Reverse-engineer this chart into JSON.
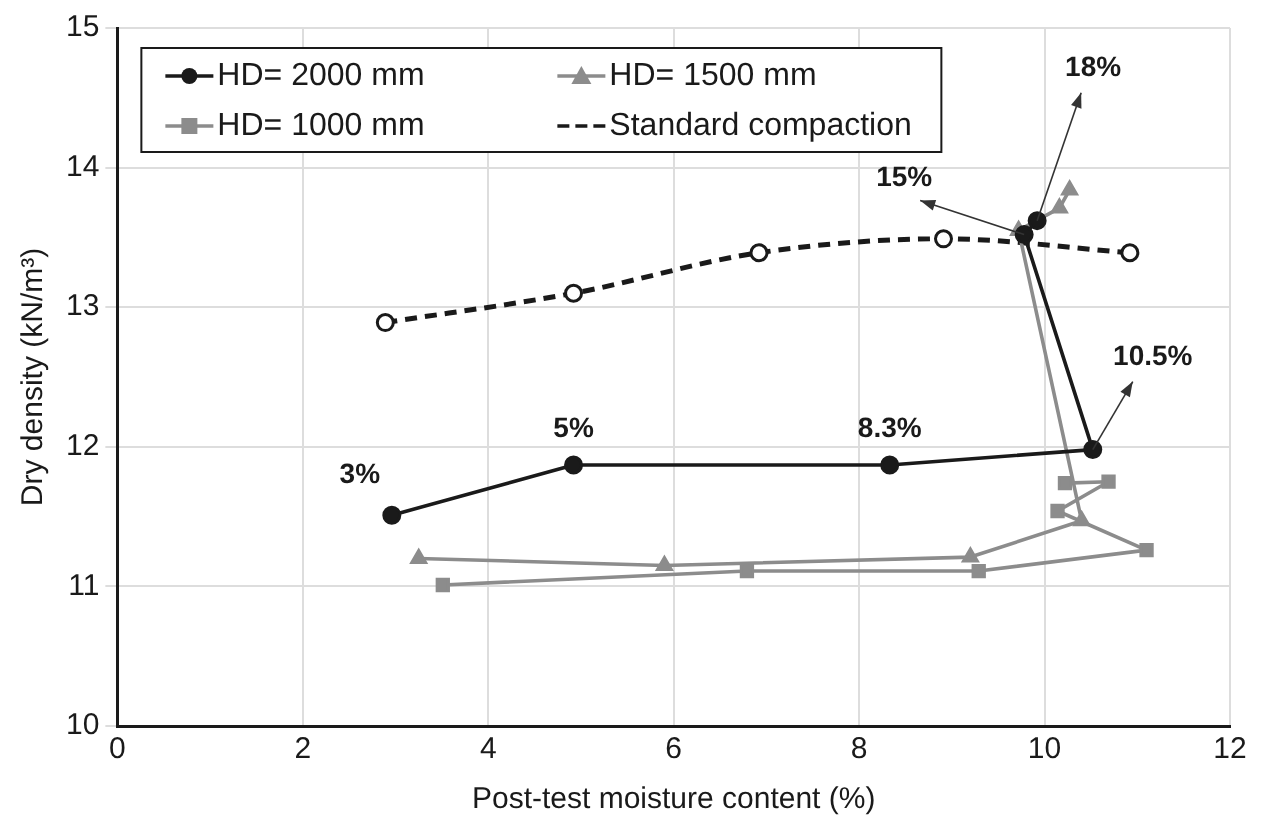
{
  "chart_data": {
    "type": "line",
    "xlabel": "Post-test moisture content (%)",
    "ylabel": "Dry density (kN/m³)",
    "xlim": [
      0,
      12
    ],
    "xticks": [
      0,
      2,
      4,
      6,
      8,
      10,
      12
    ],
    "ylim": [
      10,
      15
    ],
    "yticks": [
      10,
      11,
      12,
      13,
      14,
      15
    ],
    "grid": true,
    "legend": "top left",
    "series": [
      {
        "name": "HD= 2000 mm",
        "color": "#1a1a1a",
        "marker": "circle",
        "line_style": "solid",
        "x": [
          2.96,
          4.92,
          8.33,
          10.52,
          9.78,
          9.92
        ],
        "values": [
          11.51,
          11.87,
          11.87,
          11.98,
          13.52,
          13.62
        ]
      },
      {
        "name": "HD= 1500 mm",
        "color": "#8c8c8c",
        "marker": "triangle",
        "line_style": "solid",
        "x": [
          3.25,
          5.9,
          9.2,
          10.4,
          9.72,
          10.16,
          10.27
        ],
        "values": [
          11.2,
          11.15,
          11.21,
          11.47,
          13.55,
          13.71,
          13.84
        ]
      },
      {
        "name": "HD= 1000 mm",
        "color": "#8c8c8c",
        "marker": "square",
        "line_style": "solid",
        "x": [
          3.51,
          6.79,
          9.29,
          11.1,
          10.14,
          10.69,
          10.22
        ],
        "values": [
          11.01,
          11.11,
          11.11,
          11.26,
          11.54,
          11.75,
          11.74
        ]
      },
      {
        "name": "Standard compaction",
        "color": "#1a1a1a",
        "marker": "circle",
        "line_style": "dashed",
        "x": [
          2.89,
          4.92,
          6.92,
          8.91,
          10.92
        ],
        "values": [
          12.89,
          13.1,
          13.39,
          13.49,
          13.39
        ]
      }
    ],
    "annotations": [
      {
        "text": "3%",
        "x": 2.96,
        "y": 11.51
      },
      {
        "text": "5%",
        "x": 4.92,
        "y": 11.87
      },
      {
        "text": "8.3%",
        "x": 8.33,
        "y": 11.87
      },
      {
        "text": "10.5%",
        "x": 10.52,
        "y": 11.98
      },
      {
        "text": "15%",
        "x": 9.78,
        "y": 13.52
      },
      {
        "text": "18%",
        "x": 9.92,
        "y": 13.62
      }
    ]
  }
}
